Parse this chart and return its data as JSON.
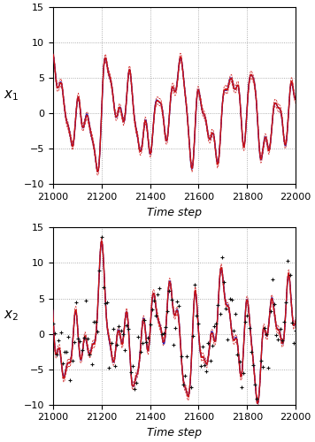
{
  "t_start": 21000,
  "t_end": 22000,
  "n_steps": 1001,
  "ylim": [
    -10,
    15
  ],
  "yticks": [
    -10,
    -5,
    0,
    5,
    10,
    15
  ],
  "xticks": [
    21000,
    21200,
    21400,
    21600,
    21800,
    22000
  ],
  "xlabel": "Time step",
  "ylabel1": "$x_1$",
  "ylabel2": "$x_2$",
  "true_color": "#2222BB",
  "est_color": "#CC1111",
  "sigma_color": "#CC1111",
  "obs_color": "#111111",
  "grid_color": "#999999",
  "background_color": "#ffffff",
  "true_linewidth": 1.0,
  "est_linewidth": 1.0,
  "sigma_linewidth": 0.5,
  "figsize": [
    3.56,
    5.0
  ],
  "dpi": 100
}
